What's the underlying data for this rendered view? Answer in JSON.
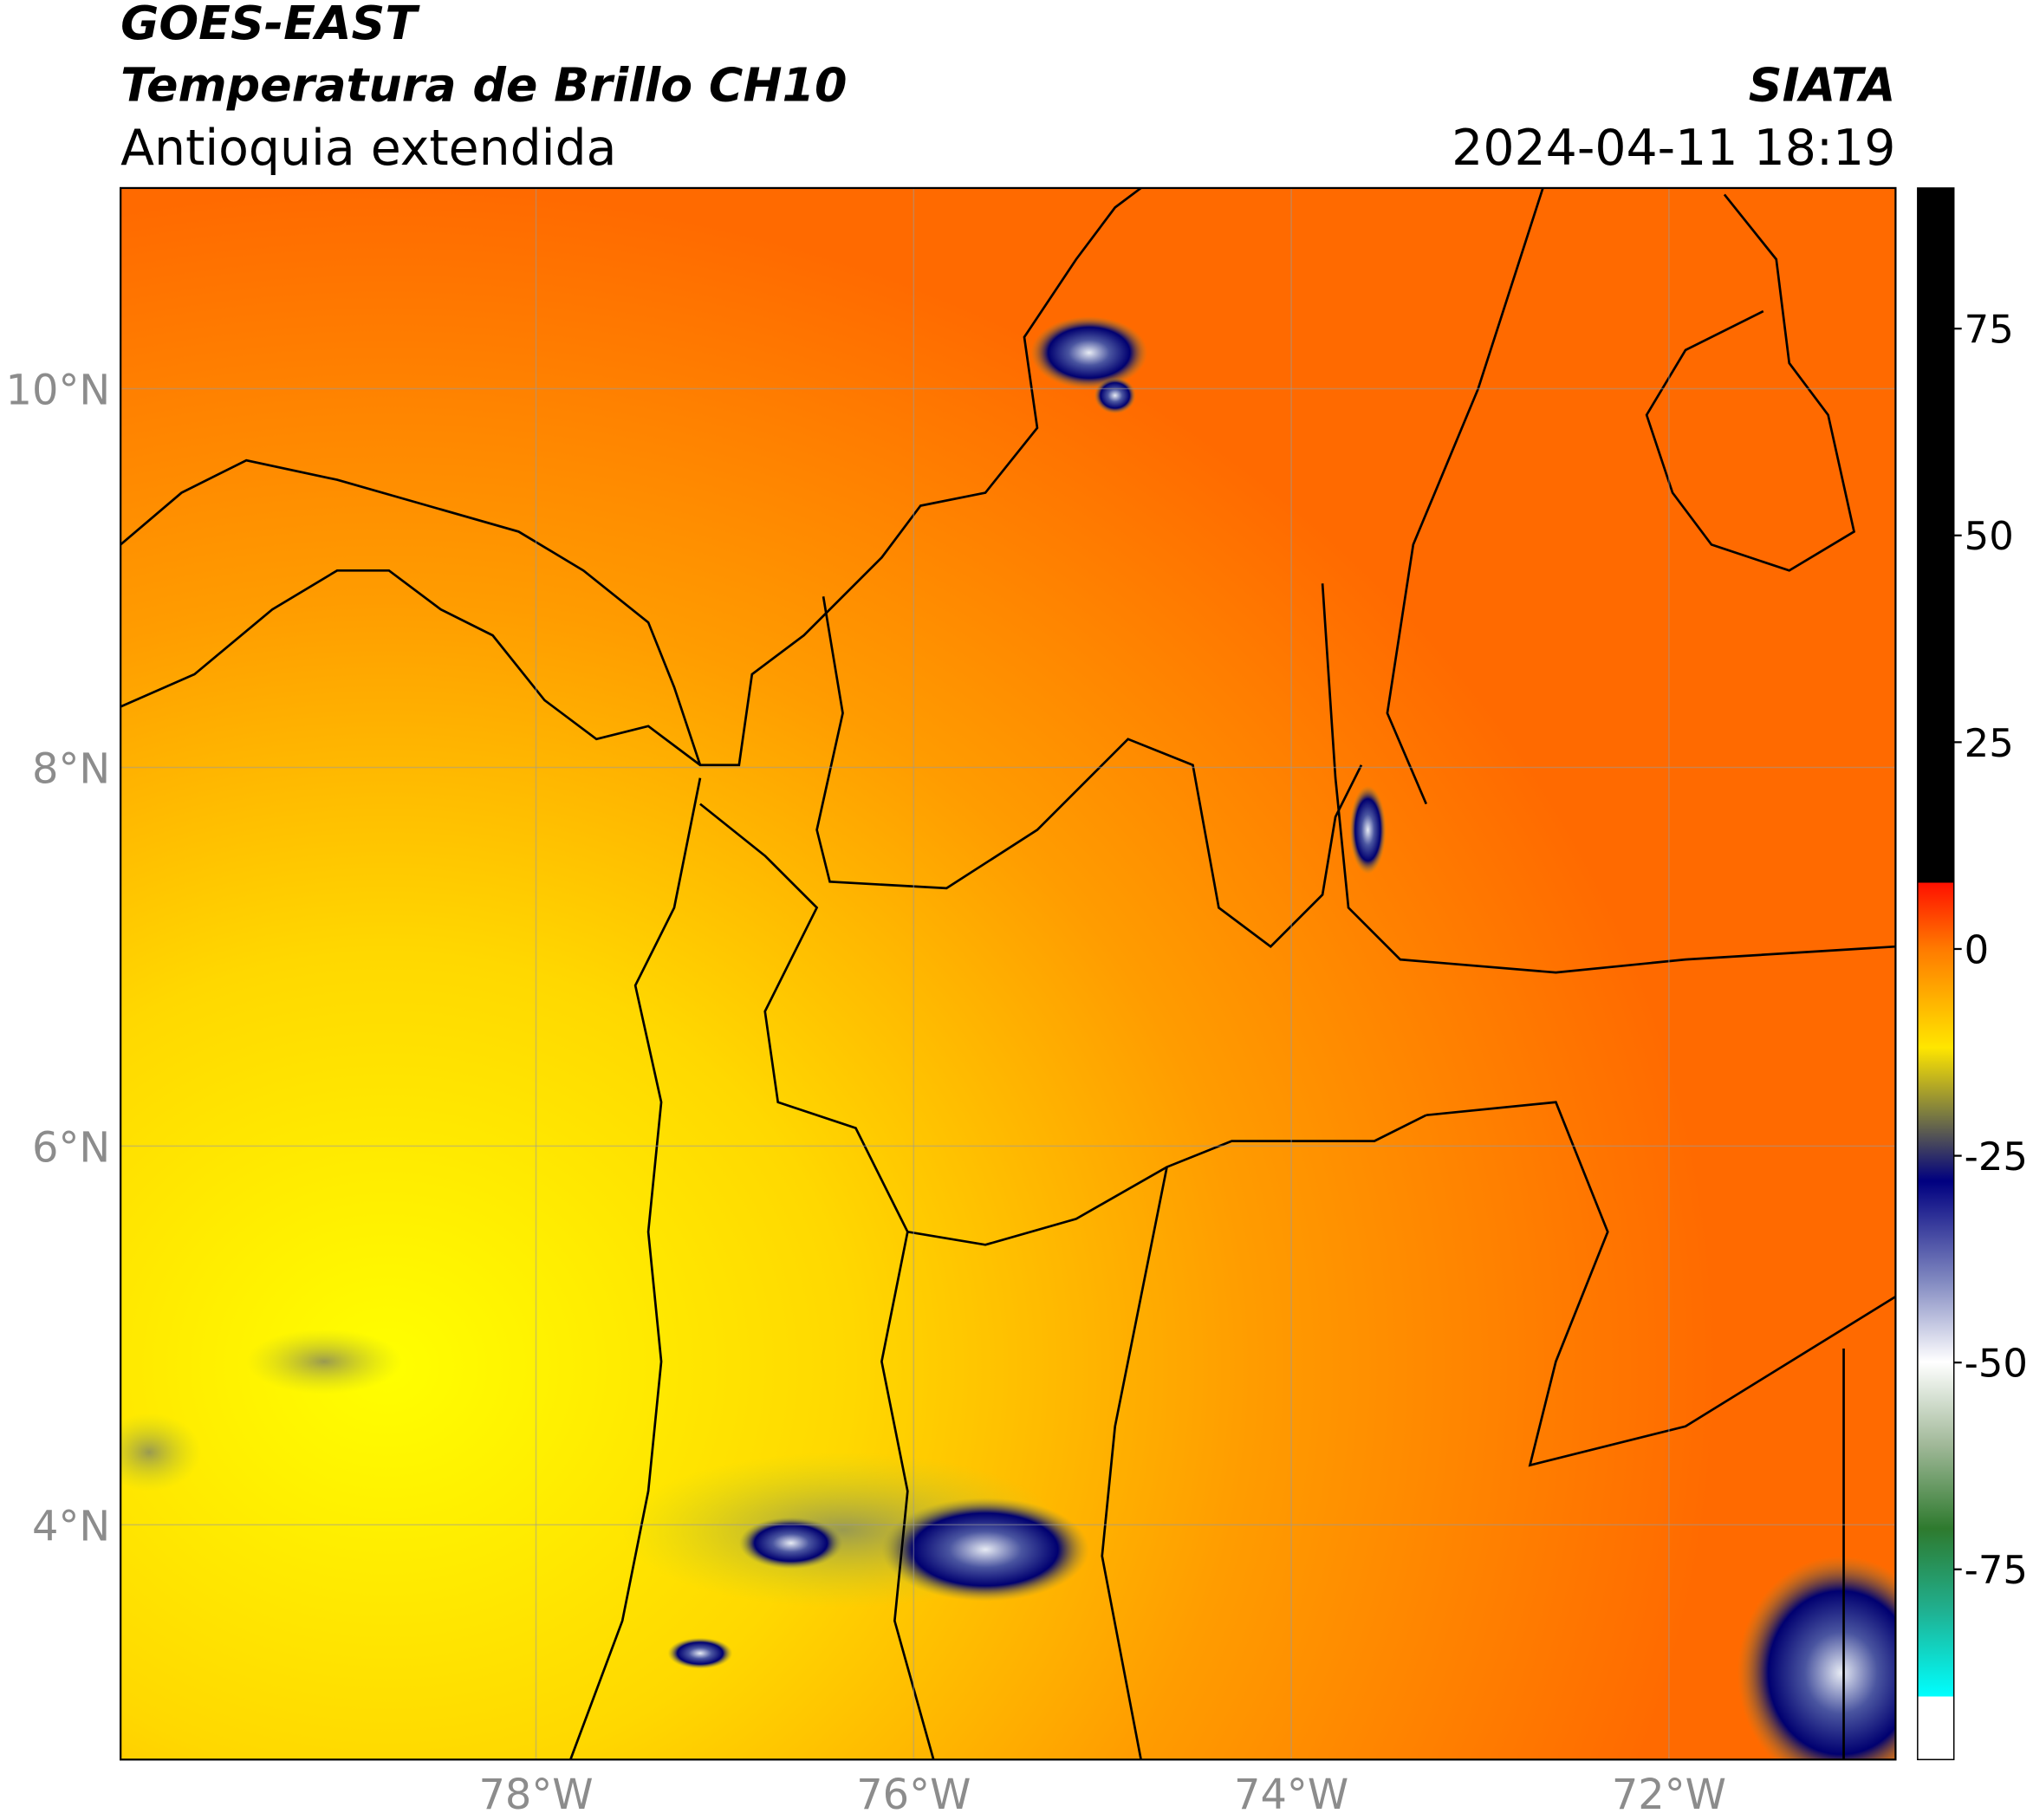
{
  "header": {
    "satellite": "GOES-EAST",
    "product": "Temperatura de Brillo CH10",
    "region": "Antioquia extendida",
    "source": "SIATA",
    "timestamp": "2024-04-11 18:19"
  },
  "chart_data": {
    "type": "map",
    "xlim": [
      -80.2,
      -70.8
    ],
    "ylim": [
      2.76,
      11.06
    ],
    "xticks": [
      {
        "value": -78,
        "label": "78°W"
      },
      {
        "value": -76,
        "label": "76°W"
      },
      {
        "value": -74,
        "label": "74°W"
      },
      {
        "value": -72,
        "label": "72°W"
      }
    ],
    "yticks": [
      {
        "value": 10,
        "label": "10°N"
      },
      {
        "value": 8,
        "label": "8°N"
      },
      {
        "value": 6,
        "label": "6°N"
      },
      {
        "value": 4,
        "label": "4°N"
      }
    ],
    "grid": true
  },
  "colorbar": {
    "lim": [
      -98,
      92
    ],
    "ticks": [
      75,
      50,
      25,
      0,
      -25,
      -50,
      -75
    ]
  }
}
